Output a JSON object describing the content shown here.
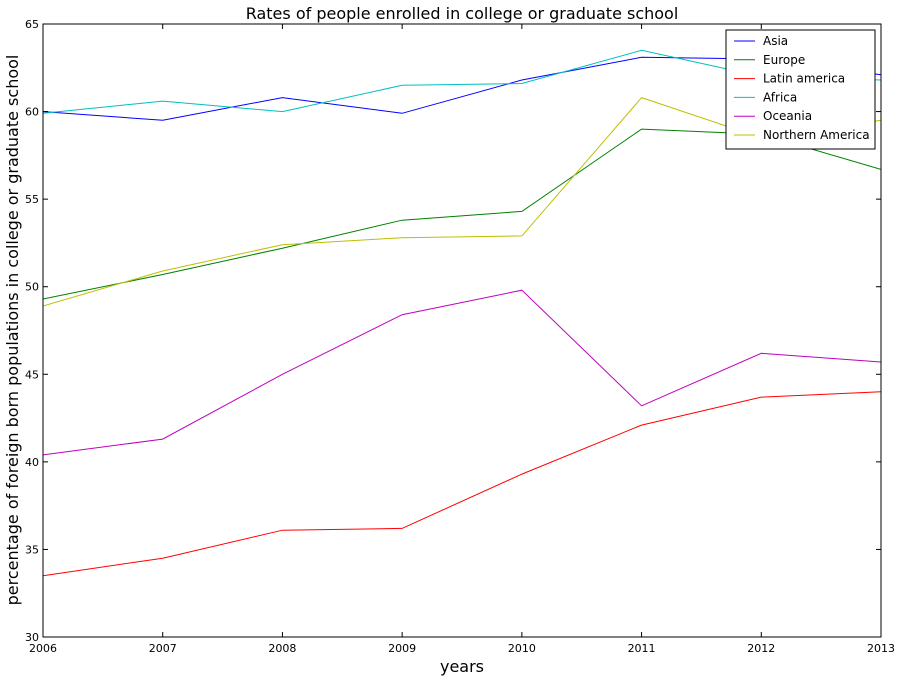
{
  "chart_data": {
    "type": "line",
    "title": "Rates of people enrolled in college or graduate school",
    "xlabel": "years",
    "ylabel": "percentage of foreign born populations in college or graduate school",
    "x": [
      2006,
      2007,
      2008,
      2009,
      2010,
      2011,
      2012,
      2013
    ],
    "xlim": [
      2006,
      2013
    ],
    "ylim": [
      30,
      65
    ],
    "xticks": [
      "2006",
      "2007",
      "2008",
      "2009",
      "2010",
      "2011",
      "2012",
      "2013"
    ],
    "yticks": [
      "30",
      "35",
      "40",
      "45",
      "50",
      "55",
      "60",
      "65"
    ],
    "grid": false,
    "legend_position": "top-right",
    "series": [
      {
        "name": "Asia",
        "color": "#0000ff",
        "values": [
          60.0,
          59.5,
          60.8,
          59.9,
          61.8,
          63.1,
          63.0,
          62.1
        ]
      },
      {
        "name": "Europe",
        "color": "#008000",
        "values": [
          49.3,
          50.7,
          52.2,
          53.8,
          54.3,
          59.0,
          58.7,
          56.7
        ]
      },
      {
        "name": "Latin america",
        "color": "#ff0000",
        "values": [
          33.5,
          34.5,
          36.1,
          36.2,
          39.3,
          42.1,
          43.7,
          44.0
        ]
      },
      {
        "name": "Africa",
        "color": "#00bfbf",
        "values": [
          59.9,
          60.6,
          60.0,
          61.5,
          61.6,
          63.5,
          62.0,
          61.8
        ]
      },
      {
        "name": "Oceania",
        "color": "#bf00bf",
        "values": [
          40.4,
          41.3,
          45.0,
          48.4,
          49.8,
          43.2,
          46.2,
          45.7
        ]
      },
      {
        "name": "Northern America",
        "color": "#bfbf00",
        "values": [
          48.9,
          50.9,
          52.4,
          52.8,
          52.9,
          60.8,
          58.5,
          59.5
        ]
      }
    ]
  }
}
